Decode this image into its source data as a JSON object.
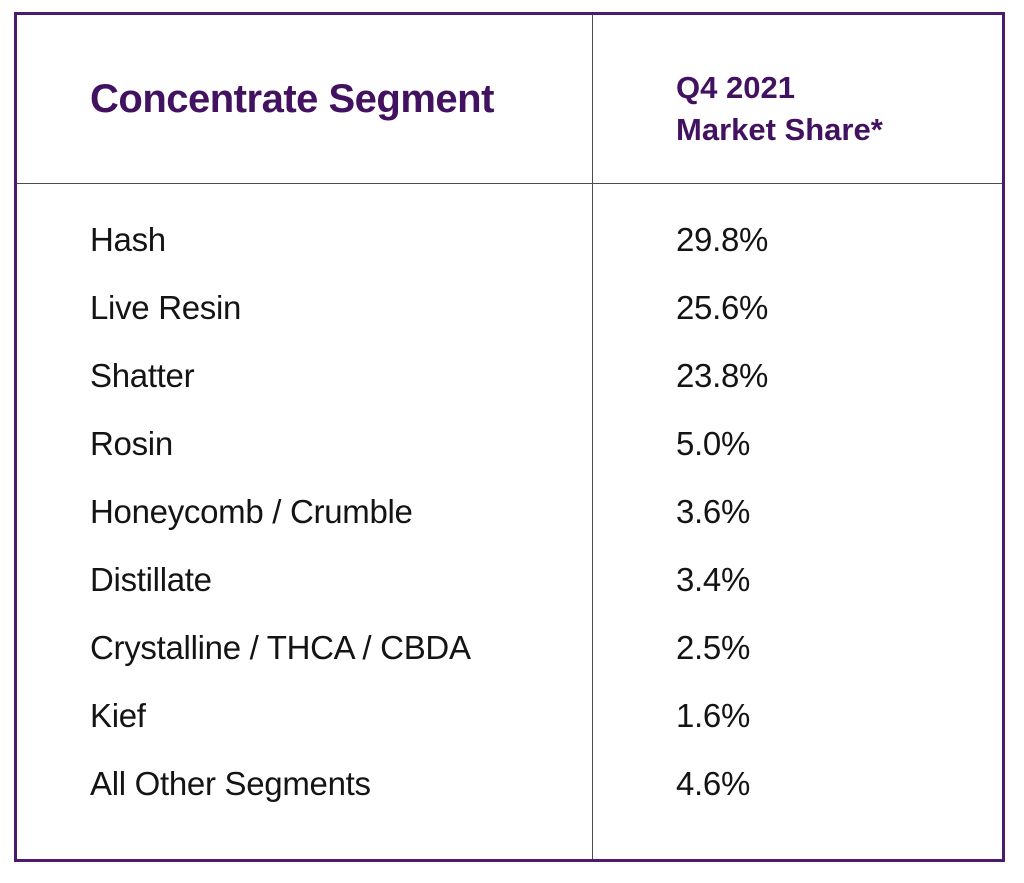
{
  "table": {
    "header": {
      "segment_label": "Concentrate Segment",
      "share_label_line1": "Q4 2021",
      "share_label_line2": "Market Share*"
    },
    "rows": [
      {
        "segment": "Hash",
        "share": "29.8%"
      },
      {
        "segment": "Live Resin",
        "share": "25.6%"
      },
      {
        "segment": "Shatter",
        "share": "23.8%"
      },
      {
        "segment": "Rosin",
        "share": "5.0%"
      },
      {
        "segment": "Honeycomb / Crumble",
        "share": "3.6%"
      },
      {
        "segment": "Distillate",
        "share": "3.4%"
      },
      {
        "segment": "Crystalline / THCA / CBDA",
        "share": "2.5%"
      },
      {
        "segment": "Kief",
        "share": "1.6%"
      },
      {
        "segment": "All Other Segments",
        "share": "4.6%"
      }
    ]
  },
  "colors": {
    "accent_purple": "#421160",
    "border_purple": "#4b1c6e",
    "divider_gray": "#4d4d4d",
    "text_black": "#141414"
  },
  "chart_data": {
    "type": "table",
    "title": "Concentrate Segment Q4 2021 Market Share*",
    "columns": [
      "Concentrate Segment",
      "Q4 2021 Market Share*"
    ],
    "categories": [
      "Hash",
      "Live Resin",
      "Shatter",
      "Rosin",
      "Honeycomb / Crumble",
      "Distillate",
      "Crystalline / THCA / CBDA",
      "Kief",
      "All Other Segments"
    ],
    "values": [
      29.8,
      25.6,
      23.8,
      5.0,
      3.6,
      3.4,
      2.5,
      1.6,
      4.6
    ],
    "unit": "%"
  }
}
